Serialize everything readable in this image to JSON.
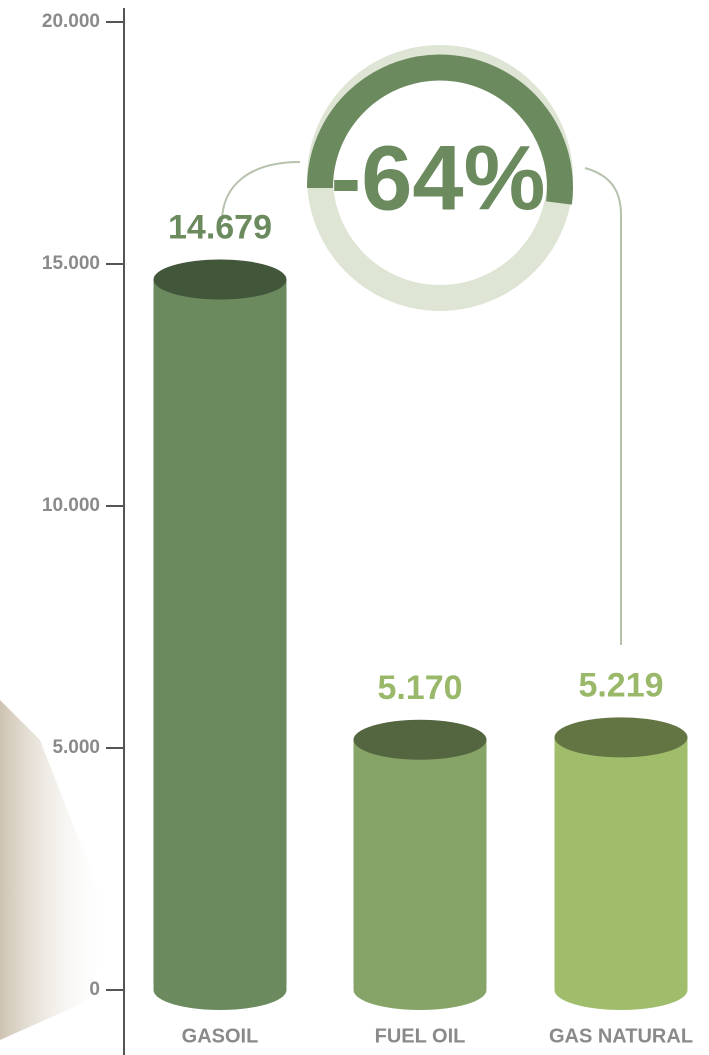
{
  "chart_data": {
    "type": "bar",
    "annotation": "-64%",
    "categories": [
      "GASOIL",
      "FUEL OIL",
      "GAS NATURAL"
    ],
    "values": [
      14679,
      5170,
      5219
    ],
    "value_labels": [
      "14.679",
      "5.170",
      "5.219"
    ],
    "colors": [
      "#6b8a5e",
      "#87a468",
      "#a0bd6c"
    ],
    "ylim": [
      0,
      20000
    ],
    "yticks": [
      {
        "value": 0,
        "label": "0"
      },
      {
        "value": 5000,
        "label": "5.000"
      },
      {
        "value": 10000,
        "label": "10.000"
      },
      {
        "value": 15000,
        "label": "15.000"
      },
      {
        "value": 20000,
        "label": "20.000"
      }
    ]
  }
}
